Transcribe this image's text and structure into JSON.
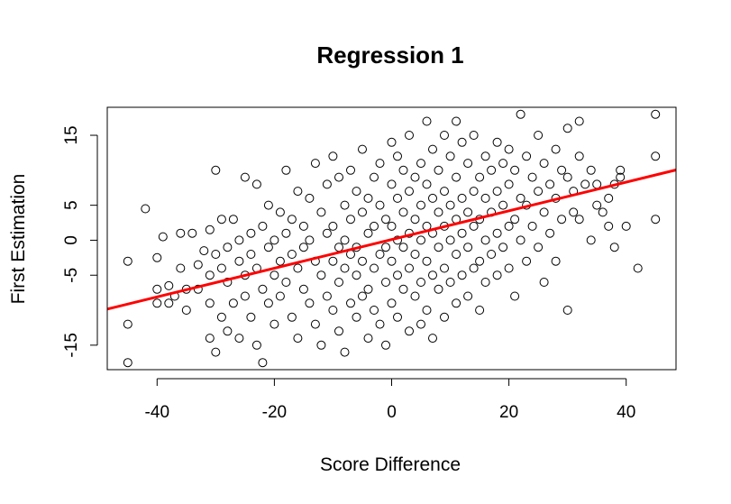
{
  "chart_data": {
    "type": "scatter",
    "title": "Regression 1",
    "xlabel": "Score Difference",
    "ylabel": "First Estimation",
    "xlim": [
      -48.5,
      48.5
    ],
    "ylim": [
      -18.5,
      19
    ],
    "x_ticks": [
      -40,
      -20,
      0,
      20,
      40
    ],
    "y_ticks": [
      -15,
      -5,
      0,
      5,
      15
    ],
    "y_tick_labels": [
      "-15",
      "-5",
      "0",
      "5",
      "15"
    ],
    "grid": false,
    "legend": "none",
    "point_style": "open-circle",
    "point_color": "#000000",
    "regression_line": {
      "intercept": 0.1,
      "slope": 0.205,
      "color": "#ff0000"
    },
    "series": [
      {
        "points": [
          [
            -45,
            -3
          ],
          [
            -45,
            -12
          ],
          [
            -45,
            -17.5
          ],
          [
            -42,
            4.5
          ],
          [
            -40,
            -2.5
          ],
          [
            -40,
            -7
          ],
          [
            -40,
            -9
          ],
          [
            -39,
            0.5
          ],
          [
            -38,
            -6.5
          ],
          [
            -38,
            -9
          ],
          [
            -37,
            -8
          ],
          [
            -36,
            1
          ],
          [
            -36,
            -4
          ],
          [
            -35,
            -7
          ],
          [
            -35,
            -10
          ],
          [
            -34,
            1
          ],
          [
            -33,
            -3.5
          ],
          [
            -33,
            -7
          ],
          [
            -32,
            -1.5
          ],
          [
            -31,
            1.5
          ],
          [
            -31,
            -5
          ],
          [
            -31,
            -9
          ],
          [
            -31,
            -14
          ],
          [
            -30,
            10
          ],
          [
            -30,
            -2
          ],
          [
            -30,
            -16
          ],
          [
            -29,
            3
          ],
          [
            -29,
            -4
          ],
          [
            -29,
            -11
          ],
          [
            -28,
            -1
          ],
          [
            -28,
            -6
          ],
          [
            -28,
            -13
          ],
          [
            -27,
            3
          ],
          [
            -27,
            -9
          ],
          [
            -26,
            0
          ],
          [
            -26,
            -3
          ],
          [
            -26,
            -14
          ],
          [
            -25,
            9
          ],
          [
            -25,
            -5
          ],
          [
            -25,
            -8
          ],
          [
            -24,
            1
          ],
          [
            -24,
            -2
          ],
          [
            -24,
            -11
          ],
          [
            -23,
            8
          ],
          [
            -23,
            -4
          ],
          [
            -23,
            -15
          ],
          [
            -22,
            2
          ],
          [
            -22,
            -7
          ],
          [
            -22,
            -17.5
          ],
          [
            -21,
            5
          ],
          [
            -21,
            -1
          ],
          [
            -21,
            -9
          ],
          [
            -20,
            0
          ],
          [
            -20,
            -5
          ],
          [
            -20,
            -12
          ],
          [
            -19,
            4
          ],
          [
            -19,
            -3
          ],
          [
            -19,
            -8
          ],
          [
            -18,
            10
          ],
          [
            -18,
            1
          ],
          [
            -18,
            -6
          ],
          [
            -17,
            3
          ],
          [
            -17,
            -2
          ],
          [
            -17,
            -11
          ],
          [
            -16,
            7
          ],
          [
            -16,
            -4
          ],
          [
            -16,
            -14
          ],
          [
            -15,
            2
          ],
          [
            -15,
            -1
          ],
          [
            -15,
            -7
          ],
          [
            -14,
            6
          ],
          [
            -14,
            0
          ],
          [
            -14,
            -9
          ],
          [
            -13,
            11
          ],
          [
            -13,
            -3
          ],
          [
            -13,
            -12
          ],
          [
            -12,
            4
          ],
          [
            -12,
            -5
          ],
          [
            -12,
            -15
          ],
          [
            -11,
            8
          ],
          [
            -11,
            1
          ],
          [
            -11,
            -8
          ],
          [
            -10,
            12
          ],
          [
            -10,
            2
          ],
          [
            -10,
            -3
          ],
          [
            -10,
            -10
          ],
          [
            -9,
            9
          ],
          [
            -9,
            -1
          ],
          [
            -9,
            -6
          ],
          [
            -9,
            -13
          ],
          [
            -8,
            5
          ],
          [
            -8,
            0
          ],
          [
            -8,
            -4
          ],
          [
            -8,
            -16
          ],
          [
            -7,
            10
          ],
          [
            -7,
            3
          ],
          [
            -7,
            -2
          ],
          [
            -7,
            -9
          ],
          [
            -6,
            7
          ],
          [
            -6,
            -1
          ],
          [
            -6,
            -5
          ],
          [
            -6,
            -11
          ],
          [
            -5,
            13
          ],
          [
            -5,
            4
          ],
          [
            -5,
            -3
          ],
          [
            -5,
            -8
          ],
          [
            -4,
            6
          ],
          [
            -4,
            1
          ],
          [
            -4,
            -7
          ],
          [
            -4,
            -14
          ],
          [
            -3,
            9
          ],
          [
            -3,
            2
          ],
          [
            -3,
            -4
          ],
          [
            -3,
            -10
          ],
          [
            -2,
            11
          ],
          [
            -2,
            5
          ],
          [
            -2,
            -2
          ],
          [
            -2,
            -12
          ],
          [
            -1,
            3
          ],
          [
            -1,
            -1
          ],
          [
            -1,
            -6
          ],
          [
            -1,
            -15
          ],
          [
            0,
            14
          ],
          [
            0,
            8
          ],
          [
            0,
            2
          ],
          [
            0,
            -3
          ],
          [
            0,
            -9
          ],
          [
            1,
            12
          ],
          [
            1,
            6
          ],
          [
            1,
            0
          ],
          [
            1,
            -5
          ],
          [
            1,
            -11
          ],
          [
            2,
            10
          ],
          [
            2,
            4
          ],
          [
            2,
            -1
          ],
          [
            2,
            -7
          ],
          [
            3,
            15
          ],
          [
            3,
            7
          ],
          [
            3,
            1
          ],
          [
            3,
            -4
          ],
          [
            3,
            -13
          ],
          [
            4,
            9
          ],
          [
            4,
            3
          ],
          [
            4,
            -2
          ],
          [
            4,
            -8
          ],
          [
            5,
            11
          ],
          [
            5,
            5
          ],
          [
            5,
            0
          ],
          [
            5,
            -6
          ],
          [
            5,
            -12
          ],
          [
            6,
            17
          ],
          [
            6,
            8
          ],
          [
            6,
            2
          ],
          [
            6,
            -3
          ],
          [
            6,
            -10
          ],
          [
            7,
            13
          ],
          [
            7,
            6
          ],
          [
            7,
            1
          ],
          [
            7,
            -5
          ],
          [
            7,
            -14
          ],
          [
            8,
            10
          ],
          [
            8,
            4
          ],
          [
            8,
            -1
          ],
          [
            8,
            -7
          ],
          [
            9,
            15
          ],
          [
            9,
            7
          ],
          [
            9,
            2
          ],
          [
            9,
            -4
          ],
          [
            9,
            -11
          ],
          [
            10,
            12
          ],
          [
            10,
            5
          ],
          [
            10,
            0
          ],
          [
            10,
            -6
          ],
          [
            11,
            17
          ],
          [
            11,
            9
          ],
          [
            11,
            3
          ],
          [
            11,
            -2
          ],
          [
            11,
            -9
          ],
          [
            12,
            14
          ],
          [
            12,
            6
          ],
          [
            12,
            1
          ],
          [
            12,
            -5
          ],
          [
            13,
            11
          ],
          [
            13,
            4
          ],
          [
            13,
            -1
          ],
          [
            13,
            -8
          ],
          [
            14,
            15
          ],
          [
            14,
            7
          ],
          [
            14,
            2
          ],
          [
            14,
            -4
          ],
          [
            15,
            9
          ],
          [
            15,
            3
          ],
          [
            15,
            -3
          ],
          [
            15,
            -10
          ],
          [
            16,
            12
          ],
          [
            16,
            6
          ],
          [
            16,
            0
          ],
          [
            16,
            -6
          ],
          [
            17,
            10
          ],
          [
            17,
            4
          ],
          [
            17,
            -2
          ],
          [
            18,
            14
          ],
          [
            18,
            7
          ],
          [
            18,
            1
          ],
          [
            18,
            -5
          ],
          [
            19,
            11
          ],
          [
            19,
            5
          ],
          [
            19,
            -1
          ],
          [
            20,
            13
          ],
          [
            20,
            8
          ],
          [
            20,
            2
          ],
          [
            20,
            -4
          ],
          [
            21,
            10
          ],
          [
            21,
            3
          ],
          [
            21,
            -8
          ],
          [
            22,
            18
          ],
          [
            22,
            6
          ],
          [
            22,
            0
          ],
          [
            23,
            12
          ],
          [
            23,
            5
          ],
          [
            23,
            -3
          ],
          [
            24,
            9
          ],
          [
            24,
            2
          ],
          [
            25,
            15
          ],
          [
            25,
            7
          ],
          [
            25,
            -1
          ],
          [
            26,
            11
          ],
          [
            26,
            4
          ],
          [
            26,
            -6
          ],
          [
            27,
            8
          ],
          [
            27,
            1
          ],
          [
            28,
            13
          ],
          [
            28,
            6
          ],
          [
            28,
            -3
          ],
          [
            29,
            10
          ],
          [
            29,
            3
          ],
          [
            30,
            16
          ],
          [
            30,
            9
          ],
          [
            30,
            -10
          ],
          [
            31,
            7
          ],
          [
            31,
            4
          ],
          [
            32,
            17
          ],
          [
            32,
            12
          ],
          [
            32,
            3
          ],
          [
            33,
            8
          ],
          [
            34,
            10
          ],
          [
            34,
            0
          ],
          [
            35,
            5
          ],
          [
            35,
            8
          ],
          [
            36,
            4
          ],
          [
            37,
            6
          ],
          [
            37,
            2
          ],
          [
            38,
            8
          ],
          [
            38,
            -1
          ],
          [
            39,
            10
          ],
          [
            39,
            9
          ],
          [
            40,
            2
          ],
          [
            42,
            -4
          ],
          [
            45,
            18
          ],
          [
            45,
            12
          ],
          [
            45,
            3
          ]
        ]
      }
    ]
  }
}
